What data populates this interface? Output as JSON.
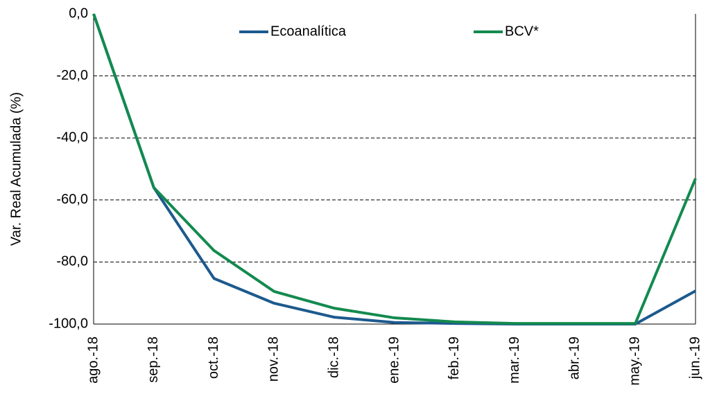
{
  "chart_data": {
    "type": "line",
    "y_label": "Var. Real Acumulada  (%)",
    "categories": [
      "ago.-18",
      "sep.-18",
      "oct.-18",
      "nov.-18",
      "dic.-18",
      "ene.-19",
      "feb.-19",
      "mar.-19",
      "abr.-19",
      "may.-19",
      "jun.-19"
    ],
    "series": [
      {
        "name": "Ecoanalítica",
        "color": "#1c5a8e",
        "values": [
          0,
          -56,
          -85.3,
          -93.3,
          -97.8,
          -99.5,
          -99.8,
          -100,
          -100,
          -100,
          -89.3
        ]
      },
      {
        "name": "BCV*",
        "color": "#138a4f",
        "values": [
          0,
          -56,
          -76.3,
          -89.5,
          -94.9,
          -98,
          -99.3,
          -99.8,
          -99.8,
          -99.8,
          -53.1
        ]
      }
    ],
    "ylim": [
      -100,
      0
    ],
    "yticks": [
      {
        "value": -100,
        "label": "-100,0"
      },
      {
        "value": -80,
        "label": "-80,0"
      },
      {
        "value": -60,
        "label": "-60,0"
      },
      {
        "value": -40,
        "label": "-40,0"
      },
      {
        "value": -20,
        "label": "-20,0"
      },
      {
        "value": 0,
        "label": "0,0"
      }
    ],
    "grid": true,
    "legend": "top"
  }
}
